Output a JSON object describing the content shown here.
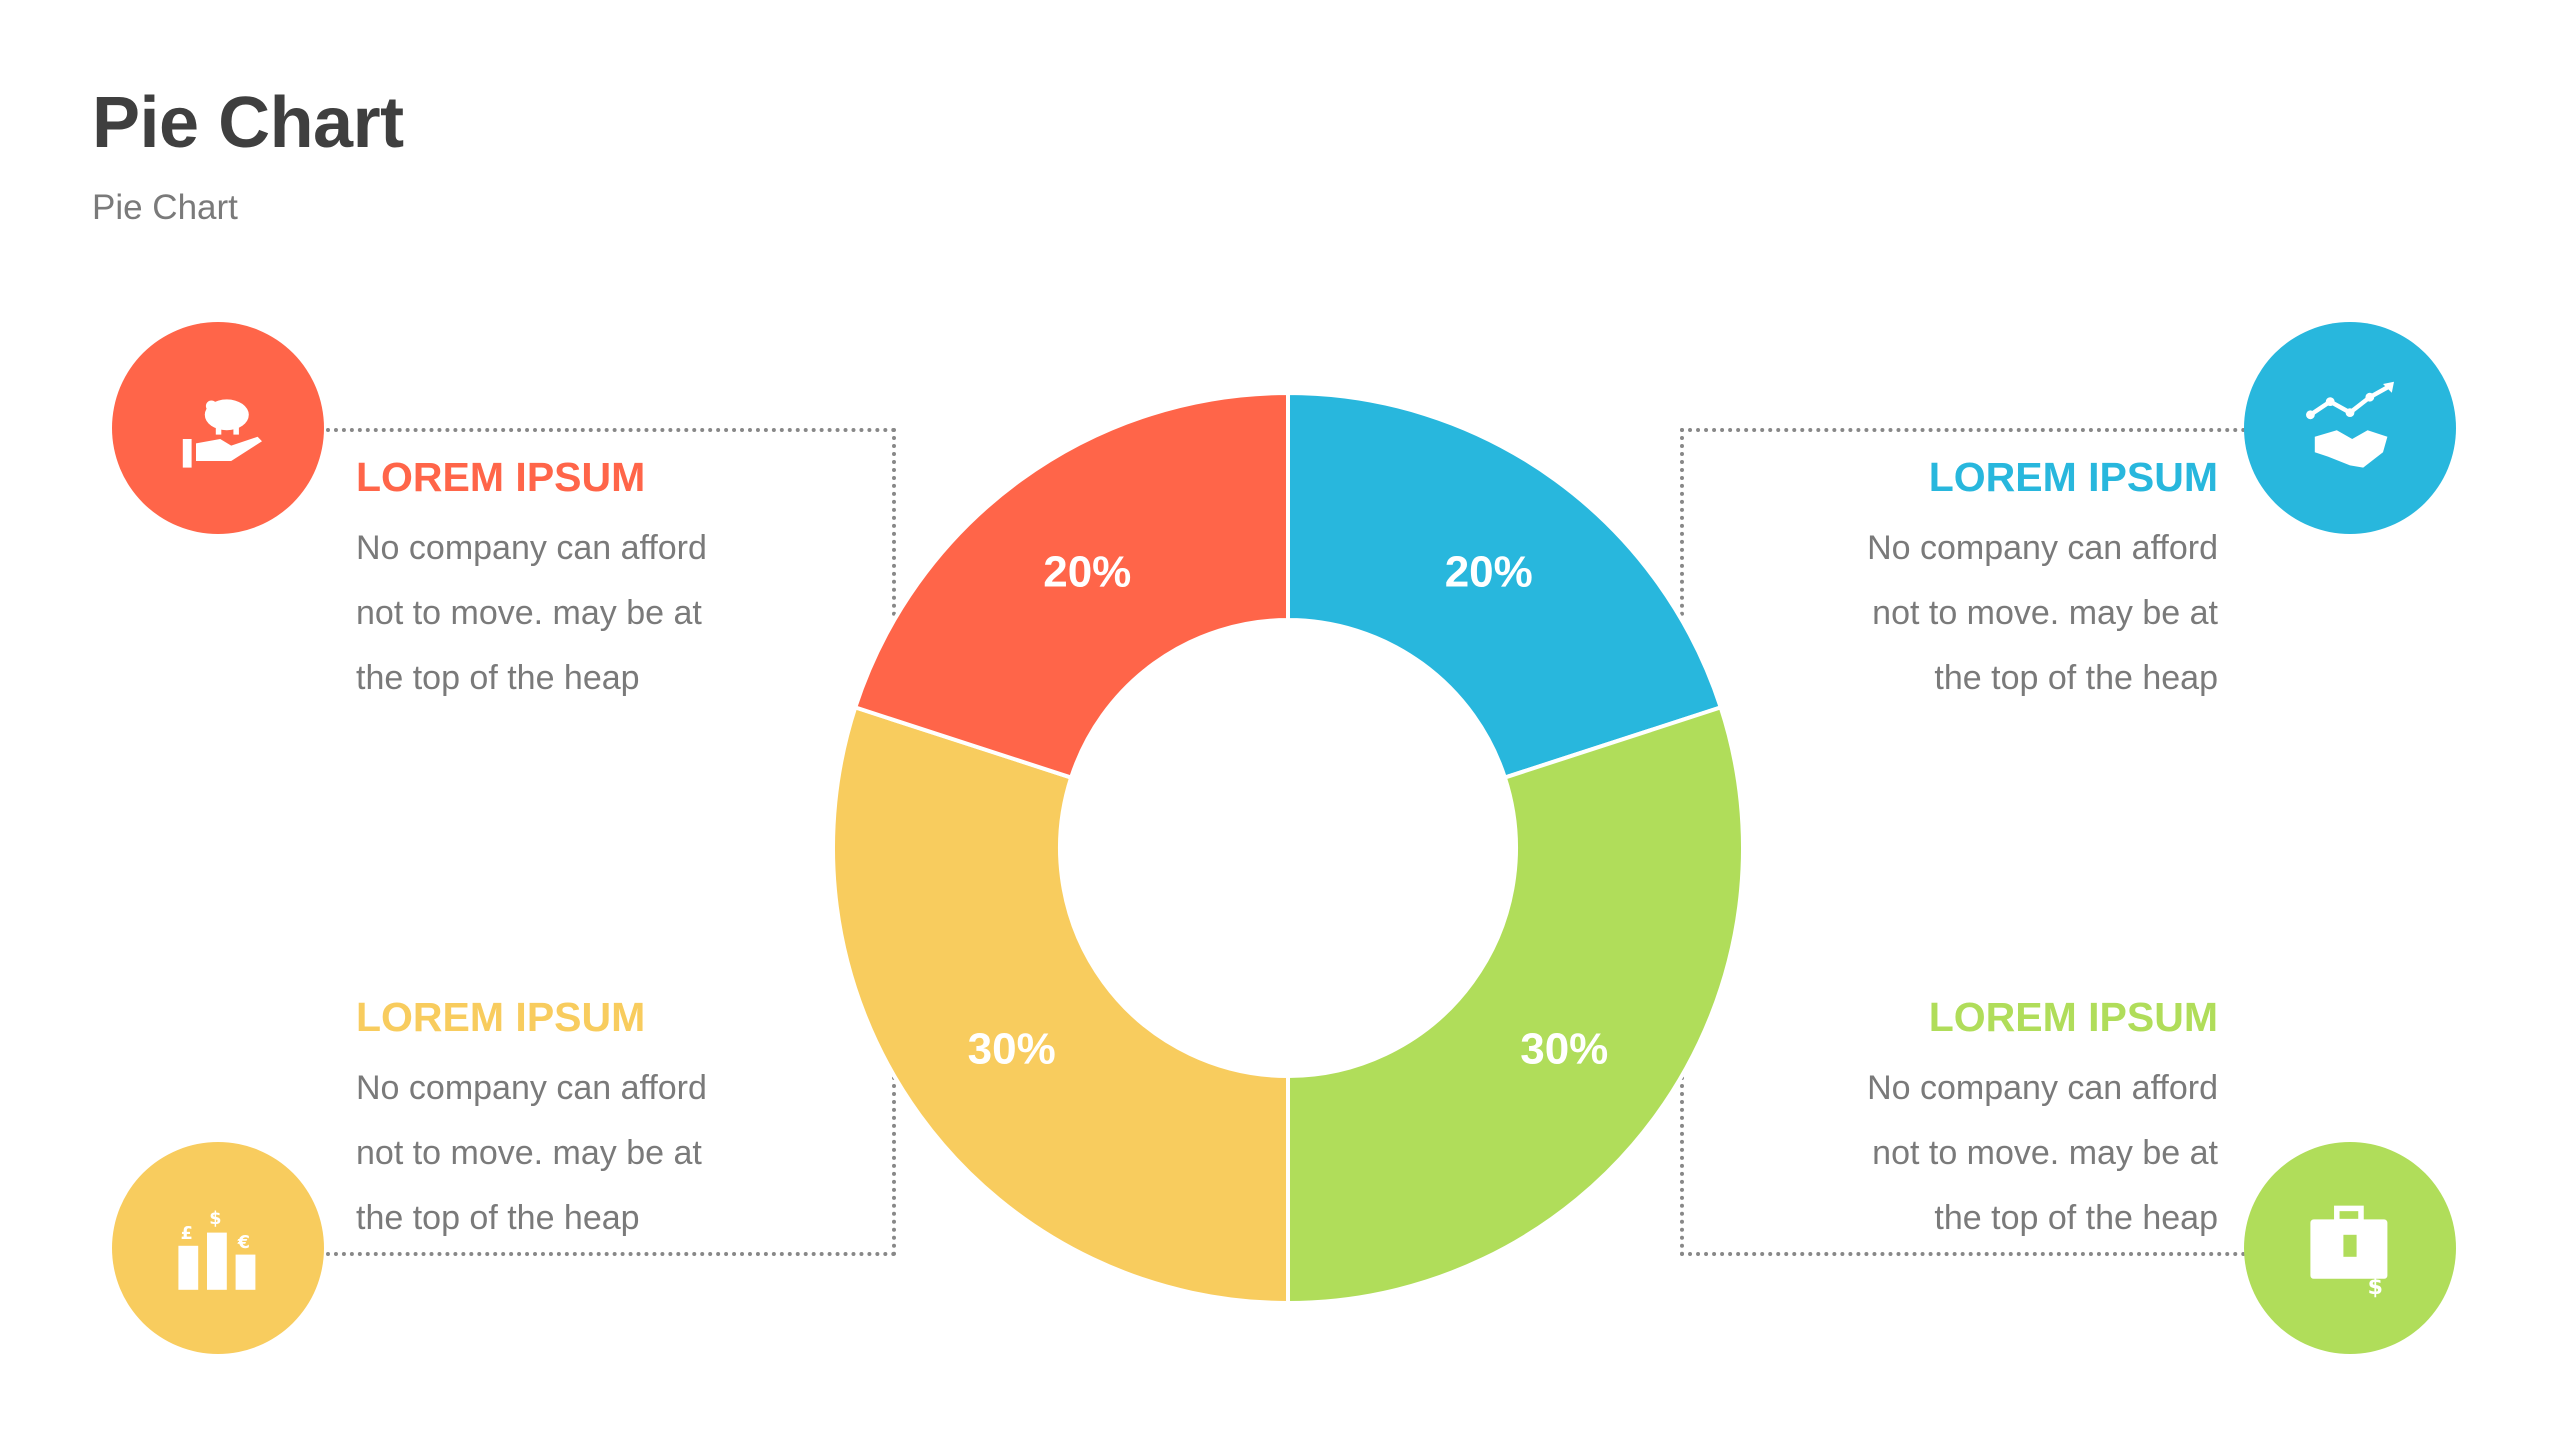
{
  "page": {
    "title": "Pie Chart",
    "subtitle": "Pie Chart"
  },
  "colors": {
    "red": "#FF6549",
    "blue": "#28B7DD",
    "green": "#B0DD5A",
    "yellow": "#F8CC5E",
    "title": "#3f3f3f",
    "text": "#7a7a7a"
  },
  "blocks": {
    "top_left": {
      "heading": "LOREM IPSUM",
      "lines": [
        "No company can afford",
        "not to move. may be at",
        "the top of the heap"
      ],
      "icon": "piggy-bank-hand-icon"
    },
    "top_right": {
      "heading": "LOREM IPSUM",
      "lines": [
        "No company can afford",
        "not to move. may be at",
        "the top of the heap"
      ],
      "icon": "handshake-growth-icon"
    },
    "bottom_left": {
      "heading": "LOREM IPSUM",
      "lines": [
        "No company can afford",
        "not to move. may be at",
        "the top of the heap"
      ],
      "icon": "currency-bars-icon"
    },
    "bottom_right": {
      "heading": "LOREM IPSUM",
      "lines": [
        "No company can afford",
        "not to move. may be at",
        "the top of the heap"
      ],
      "icon": "briefcase-money-icon"
    }
  },
  "chart_data": {
    "type": "pie",
    "donut": true,
    "title": "",
    "slices": [
      {
        "label": "20%",
        "value": 20,
        "color": "#28B7DD"
      },
      {
        "label": "30%",
        "value": 30,
        "color": "#B0DD5A"
      },
      {
        "label": "30%",
        "value": 30,
        "color": "#F8CC5E"
      },
      {
        "label": "20%",
        "value": 20,
        "color": "#FF6549"
      }
    ]
  }
}
